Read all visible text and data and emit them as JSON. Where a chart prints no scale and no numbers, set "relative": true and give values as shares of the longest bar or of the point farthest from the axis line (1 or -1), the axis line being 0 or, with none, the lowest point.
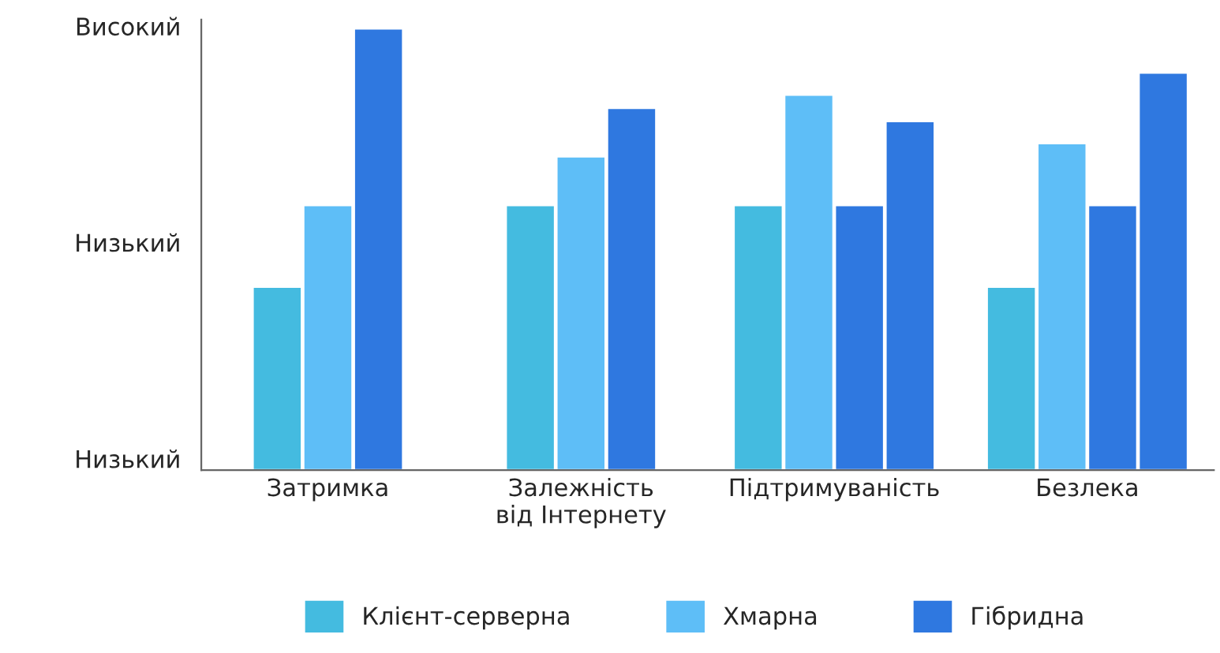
{
  "chart_data": {
    "type": "bar",
    "relative": true,
    "categories": [
      "Затримка",
      "Залежність\nвід Інтернету",
      "Підтримуваність",
      "Безлека"
    ],
    "series": [
      {
        "name": "Клієнт-серверна",
        "color": "#44bbe0",
        "values": [
          0.415,
          0.6,
          0.6,
          0.415
        ]
      },
      {
        "name": "Хмарна",
        "color": "#5ebef7",
        "values": [
          0.6,
          0.71,
          0.85,
          0.74
        ]
      },
      {
        "name": "Гібридна",
        "color": "#2f78e0",
        "values": [
          1.0,
          0.82,
          0.6,
          0.6
        ]
      },
      {
        "color": "#2f78e0",
        "values": [
          null,
          null,
          0.79,
          0.9
        ]
      }
    ],
    "annotations": [
      "Високий",
      "Низький",
      "Низький"
    ],
    "legend": "bottom",
    "grid": false
  }
}
